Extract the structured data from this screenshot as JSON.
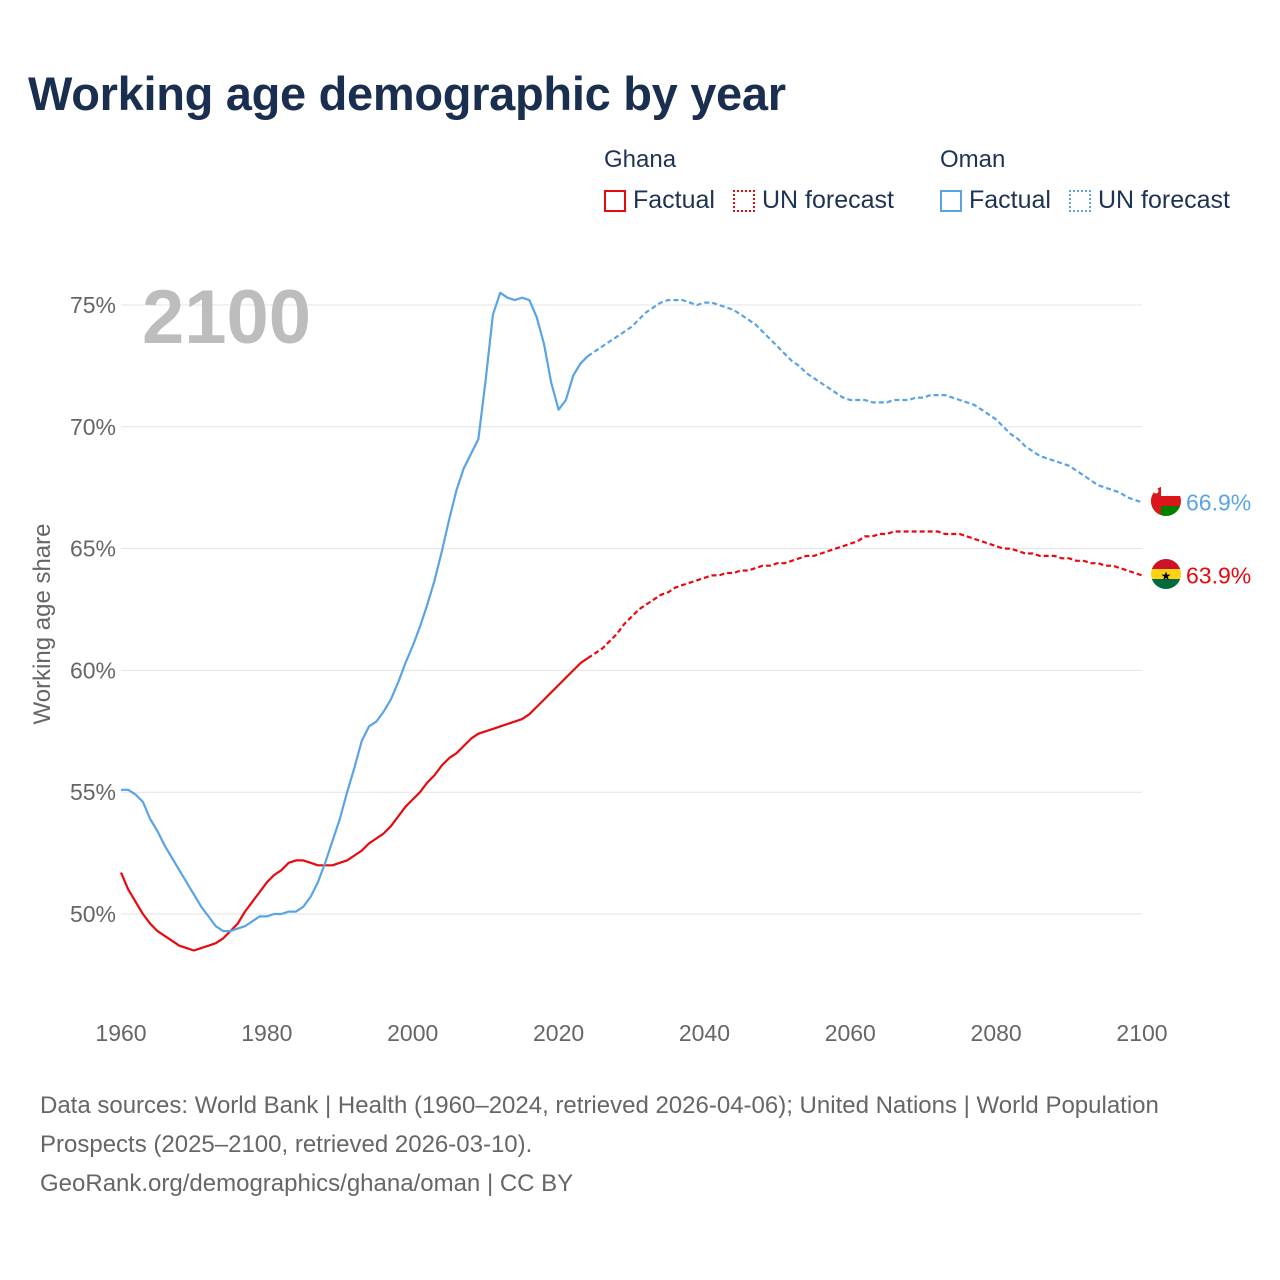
{
  "title": "Working age demographic by year",
  "legend": [
    {
      "country": "Ghana",
      "factual_label": "Factual",
      "forecast_label": "UN forecast",
      "color": "#e8090e"
    },
    {
      "country": "Oman",
      "factual_label": "Factual",
      "forecast_label": "UN forecast",
      "color": "#5aa4e3"
    }
  ],
  "footer": {
    "sources": "Data sources: World Bank | Health (1960–2024, retrieved 2026-04-06); United Nations | World Population Prospects (2025–2100, retrieved 2026-03-10).",
    "credit": "GeoRank.org/demographics/ghana/oman | CC BY"
  },
  "chart_data": {
    "type": "line",
    "title": "Working age demographic by year",
    "xlabel": "",
    "ylabel": "Working age share",
    "year_watermark": "2100",
    "xlim": [
      1960,
      2100
    ],
    "ylim": [
      46,
      76
    ],
    "x_ticks": [
      1960,
      1980,
      2000,
      2020,
      2040,
      2060,
      2080,
      2100
    ],
    "y_ticks": [
      50,
      55,
      60,
      65,
      70,
      75
    ],
    "y_tick_labels": [
      "50%",
      "55%",
      "60%",
      "65%",
      "70%",
      "75%"
    ],
    "grid": true,
    "forecast_start_year": 2025,
    "series": [
      {
        "name": "Ghana",
        "color": "#e8090e",
        "end_label": "63.9%",
        "flag": "ghana-flag",
        "points": [
          [
            1960,
            51.7
          ],
          [
            1961,
            51.0
          ],
          [
            1962,
            50.5
          ],
          [
            1963,
            50.0
          ],
          [
            1964,
            49.6
          ],
          [
            1965,
            49.3
          ],
          [
            1966,
            49.1
          ],
          [
            1967,
            48.9
          ],
          [
            1968,
            48.7
          ],
          [
            1969,
            48.6
          ],
          [
            1970,
            48.5
          ],
          [
            1971,
            48.6
          ],
          [
            1972,
            48.7
          ],
          [
            1973,
            48.8
          ],
          [
            1974,
            49.0
          ],
          [
            1975,
            49.3
          ],
          [
            1976,
            49.6
          ],
          [
            1977,
            50.1
          ],
          [
            1978,
            50.5
          ],
          [
            1979,
            50.9
          ],
          [
            1980,
            51.3
          ],
          [
            1981,
            51.6
          ],
          [
            1982,
            51.8
          ],
          [
            1983,
            52.1
          ],
          [
            1984,
            52.2
          ],
          [
            1985,
            52.2
          ],
          [
            1986,
            52.1
          ],
          [
            1987,
            52.0
          ],
          [
            1988,
            52.0
          ],
          [
            1989,
            52.0
          ],
          [
            1990,
            52.1
          ],
          [
            1991,
            52.2
          ],
          [
            1992,
            52.4
          ],
          [
            1993,
            52.6
          ],
          [
            1994,
            52.9
          ],
          [
            1995,
            53.1
          ],
          [
            1996,
            53.3
          ],
          [
            1997,
            53.6
          ],
          [
            1998,
            54.0
          ],
          [
            1999,
            54.4
          ],
          [
            2000,
            54.7
          ],
          [
            2001,
            55.0
          ],
          [
            2002,
            55.4
          ],
          [
            2003,
            55.7
          ],
          [
            2004,
            56.1
          ],
          [
            2005,
            56.4
          ],
          [
            2006,
            56.6
          ],
          [
            2007,
            56.9
          ],
          [
            2008,
            57.2
          ],
          [
            2009,
            57.4
          ],
          [
            2010,
            57.5
          ],
          [
            2011,
            57.6
          ],
          [
            2012,
            57.7
          ],
          [
            2013,
            57.8
          ],
          [
            2014,
            57.9
          ],
          [
            2015,
            58.0
          ],
          [
            2016,
            58.2
          ],
          [
            2017,
            58.5
          ],
          [
            2018,
            58.8
          ],
          [
            2019,
            59.1
          ],
          [
            2020,
            59.4
          ],
          [
            2021,
            59.7
          ],
          [
            2022,
            60.0
          ],
          [
            2023,
            60.3
          ],
          [
            2024,
            60.5
          ],
          [
            2025,
            60.7
          ],
          [
            2026,
            60.9
          ],
          [
            2027,
            61.2
          ],
          [
            2028,
            61.5
          ],
          [
            2029,
            61.9
          ],
          [
            2030,
            62.2
          ],
          [
            2031,
            62.5
          ],
          [
            2032,
            62.7
          ],
          [
            2033,
            62.9
          ],
          [
            2034,
            63.1
          ],
          [
            2035,
            63.2
          ],
          [
            2036,
            63.4
          ],
          [
            2037,
            63.5
          ],
          [
            2038,
            63.6
          ],
          [
            2039,
            63.7
          ],
          [
            2040,
            63.8
          ],
          [
            2041,
            63.9
          ],
          [
            2042,
            63.9
          ],
          [
            2043,
            64.0
          ],
          [
            2044,
            64.0
          ],
          [
            2045,
            64.1
          ],
          [
            2046,
            64.1
          ],
          [
            2047,
            64.2
          ],
          [
            2048,
            64.3
          ],
          [
            2049,
            64.3
          ],
          [
            2050,
            64.4
          ],
          [
            2051,
            64.4
          ],
          [
            2052,
            64.5
          ],
          [
            2053,
            64.6
          ],
          [
            2054,
            64.7
          ],
          [
            2055,
            64.7
          ],
          [
            2056,
            64.8
          ],
          [
            2057,
            64.9
          ],
          [
            2058,
            65.0
          ],
          [
            2059,
            65.1
          ],
          [
            2060,
            65.2
          ],
          [
            2061,
            65.3
          ],
          [
            2062,
            65.5
          ],
          [
            2063,
            65.5
          ],
          [
            2064,
            65.6
          ],
          [
            2065,
            65.6
          ],
          [
            2066,
            65.7
          ],
          [
            2067,
            65.7
          ],
          [
            2068,
            65.7
          ],
          [
            2069,
            65.7
          ],
          [
            2070,
            65.7
          ],
          [
            2071,
            65.7
          ],
          [
            2072,
            65.7
          ],
          [
            2073,
            65.6
          ],
          [
            2074,
            65.6
          ],
          [
            2075,
            65.6
          ],
          [
            2076,
            65.5
          ],
          [
            2077,
            65.4
          ],
          [
            2078,
            65.3
          ],
          [
            2079,
            65.2
          ],
          [
            2080,
            65.1
          ],
          [
            2081,
            65.0
          ],
          [
            2082,
            65.0
          ],
          [
            2083,
            64.9
          ],
          [
            2084,
            64.8
          ],
          [
            2085,
            64.8
          ],
          [
            2086,
            64.7
          ],
          [
            2087,
            64.7
          ],
          [
            2088,
            64.7
          ],
          [
            2089,
            64.6
          ],
          [
            2090,
            64.6
          ],
          [
            2091,
            64.5
          ],
          [
            2092,
            64.5
          ],
          [
            2093,
            64.4
          ],
          [
            2094,
            64.4
          ],
          [
            2095,
            64.3
          ],
          [
            2096,
            64.3
          ],
          [
            2097,
            64.2
          ],
          [
            2098,
            64.1
          ],
          [
            2099,
            64.0
          ],
          [
            2100,
            63.9
          ]
        ]
      },
      {
        "name": "Oman",
        "color": "#5aa4e3",
        "end_label": "66.9%",
        "flag": "oman-flag",
        "points": [
          [
            1960,
            55.1
          ],
          [
            1961,
            55.1
          ],
          [
            1962,
            54.9
          ],
          [
            1963,
            54.6
          ],
          [
            1964,
            53.9
          ],
          [
            1965,
            53.4
          ],
          [
            1966,
            52.8
          ],
          [
            1967,
            52.3
          ],
          [
            1968,
            51.8
          ],
          [
            1969,
            51.3
          ],
          [
            1970,
            50.8
          ],
          [
            1971,
            50.3
          ],
          [
            1972,
            49.9
          ],
          [
            1973,
            49.5
          ],
          [
            1974,
            49.3
          ],
          [
            1975,
            49.3
          ],
          [
            1976,
            49.4
          ],
          [
            1977,
            49.5
          ],
          [
            1978,
            49.7
          ],
          [
            1979,
            49.9
          ],
          [
            1980,
            49.9
          ],
          [
            1981,
            50.0
          ],
          [
            1982,
            50.0
          ],
          [
            1983,
            50.1
          ],
          [
            1984,
            50.1
          ],
          [
            1985,
            50.3
          ],
          [
            1986,
            50.7
          ],
          [
            1987,
            51.3
          ],
          [
            1988,
            52.1
          ],
          [
            1989,
            53.0
          ],
          [
            1990,
            53.9
          ],
          [
            1991,
            55.0
          ],
          [
            1992,
            56.0
          ],
          [
            1993,
            57.1
          ],
          [
            1994,
            57.7
          ],
          [
            1995,
            57.9
          ],
          [
            1996,
            58.3
          ],
          [
            1997,
            58.8
          ],
          [
            1998,
            59.5
          ],
          [
            1999,
            60.3
          ],
          [
            2000,
            61.0
          ],
          [
            2001,
            61.8
          ],
          [
            2002,
            62.7
          ],
          [
            2003,
            63.7
          ],
          [
            2004,
            64.9
          ],
          [
            2005,
            66.2
          ],
          [
            2006,
            67.4
          ],
          [
            2007,
            68.3
          ],
          [
            2008,
            68.9
          ],
          [
            2009,
            69.5
          ],
          [
            2010,
            71.9
          ],
          [
            2011,
            74.6
          ],
          [
            2012,
            75.5
          ],
          [
            2013,
            75.3
          ],
          [
            2014,
            75.2
          ],
          [
            2015,
            75.3
          ],
          [
            2016,
            75.2
          ],
          [
            2017,
            74.5
          ],
          [
            2018,
            73.4
          ],
          [
            2019,
            71.8
          ],
          [
            2020,
            70.7
          ],
          [
            2021,
            71.1
          ],
          [
            2022,
            72.1
          ],
          [
            2023,
            72.6
          ],
          [
            2024,
            72.9
          ],
          [
            2025,
            73.1
          ],
          [
            2026,
            73.3
          ],
          [
            2027,
            73.5
          ],
          [
            2028,
            73.7
          ],
          [
            2029,
            73.9
          ],
          [
            2030,
            74.1
          ],
          [
            2031,
            74.4
          ],
          [
            2032,
            74.7
          ],
          [
            2033,
            74.9
          ],
          [
            2034,
            75.1
          ],
          [
            2035,
            75.2
          ],
          [
            2036,
            75.2
          ],
          [
            2037,
            75.2
          ],
          [
            2038,
            75.1
          ],
          [
            2039,
            75.0
          ],
          [
            2040,
            75.1
          ],
          [
            2041,
            75.1
          ],
          [
            2042,
            75.0
          ],
          [
            2043,
            74.9
          ],
          [
            2044,
            74.8
          ],
          [
            2045,
            74.6
          ],
          [
            2046,
            74.4
          ],
          [
            2047,
            74.2
          ],
          [
            2048,
            73.9
          ],
          [
            2049,
            73.6
          ],
          [
            2050,
            73.3
          ],
          [
            2051,
            73.0
          ],
          [
            2052,
            72.7
          ],
          [
            2053,
            72.5
          ],
          [
            2054,
            72.2
          ],
          [
            2055,
            72.0
          ],
          [
            2056,
            71.8
          ],
          [
            2057,
            71.6
          ],
          [
            2058,
            71.4
          ],
          [
            2059,
            71.2
          ],
          [
            2060,
            71.1
          ],
          [
            2061,
            71.1
          ],
          [
            2062,
            71.1
          ],
          [
            2063,
            71.0
          ],
          [
            2064,
            71.0
          ],
          [
            2065,
            71.0
          ],
          [
            2066,
            71.1
          ],
          [
            2067,
            71.1
          ],
          [
            2068,
            71.1
          ],
          [
            2069,
            71.2
          ],
          [
            2070,
            71.2
          ],
          [
            2071,
            71.3
          ],
          [
            2072,
            71.3
          ],
          [
            2073,
            71.3
          ],
          [
            2074,
            71.2
          ],
          [
            2075,
            71.1
          ],
          [
            2076,
            71.0
          ],
          [
            2077,
            70.9
          ],
          [
            2078,
            70.7
          ],
          [
            2079,
            70.5
          ],
          [
            2080,
            70.3
          ],
          [
            2081,
            70.0
          ],
          [
            2082,
            69.7
          ],
          [
            2083,
            69.5
          ],
          [
            2084,
            69.2
          ],
          [
            2085,
            69.0
          ],
          [
            2086,
            68.8
          ],
          [
            2087,
            68.7
          ],
          [
            2088,
            68.6
          ],
          [
            2089,
            68.5
          ],
          [
            2090,
            68.4
          ],
          [
            2091,
            68.2
          ],
          [
            2092,
            68.0
          ],
          [
            2093,
            67.8
          ],
          [
            2094,
            67.6
          ],
          [
            2095,
            67.5
          ],
          [
            2096,
            67.4
          ],
          [
            2097,
            67.3
          ],
          [
            2098,
            67.1
          ],
          [
            2099,
            67.0
          ],
          [
            2100,
            66.9
          ]
        ]
      }
    ]
  }
}
